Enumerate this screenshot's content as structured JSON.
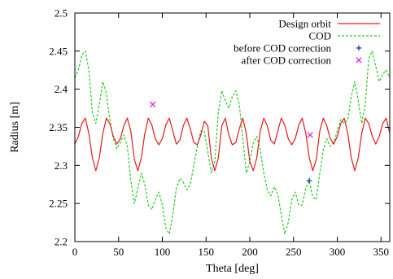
{
  "chart_data": {
    "type": "line",
    "xlabel": "Theta [deg]",
    "ylabel": "Radius [m]",
    "xlim": [
      0,
      360
    ],
    "ylim": [
      2.2,
      2.5
    ],
    "x_ticks": [
      0,
      50,
      100,
      150,
      200,
      250,
      300,
      350
    ],
    "y_ticks": [
      2.2,
      2.25,
      2.3,
      2.35,
      2.4,
      2.45,
      2.5
    ],
    "x_tick_labels": [
      "0",
      "50",
      "100",
      "150",
      "200",
      "250",
      "300",
      "350"
    ],
    "y_tick_labels": [
      "2.2",
      "2.25",
      "2.3",
      "2.35",
      "2.4",
      "2.45",
      "2.5"
    ],
    "grid": false,
    "legend_position": "top-right",
    "series": [
      {
        "name": "Design orbit",
        "kind": "line",
        "style": "solid",
        "color": "#e41a1c",
        "x": [
          0,
          4,
          8,
          12,
          16,
          20,
          24,
          28,
          32,
          36,
          40,
          44,
          48,
          52,
          56,
          60,
          64,
          68,
          72,
          76,
          80,
          84,
          88,
          92,
          96,
          100,
          104,
          108,
          112,
          116,
          120,
          124,
          128,
          132,
          136,
          140,
          144,
          148,
          152,
          156,
          160,
          164,
          168,
          172,
          176,
          180,
          184,
          188,
          192,
          196,
          200,
          204,
          208,
          212,
          216,
          220,
          224,
          228,
          232,
          236,
          240,
          244,
          248,
          252,
          256,
          260,
          264,
          268,
          272,
          276,
          280,
          284,
          288,
          292,
          296,
          300,
          304,
          308,
          312,
          316,
          320,
          324,
          328,
          332,
          336,
          340,
          344,
          348,
          352,
          356,
          360
        ],
        "y": [
          2.328,
          2.338,
          2.355,
          2.362,
          2.342,
          2.31,
          2.293,
          2.31,
          2.342,
          2.362,
          2.355,
          2.338,
          2.328,
          2.335,
          2.352,
          2.362,
          2.345,
          2.308,
          2.293,
          2.31,
          2.342,
          2.362,
          2.353,
          2.335,
          2.327,
          2.335,
          2.353,
          2.362,
          2.345,
          2.328,
          2.333,
          2.352,
          2.362,
          2.348,
          2.33,
          2.327,
          2.34,
          2.358,
          2.352,
          2.31,
          2.293,
          2.31,
          2.352,
          2.362,
          2.34,
          2.327,
          2.33,
          2.348,
          2.362,
          2.342,
          2.305,
          2.293,
          2.31,
          2.345,
          2.362,
          2.352,
          2.333,
          2.328,
          2.345,
          2.362,
          2.353,
          2.335,
          2.327,
          2.335,
          2.353,
          2.362,
          2.342,
          2.31,
          2.293,
          2.308,
          2.345,
          2.362,
          2.352,
          2.335,
          2.328,
          2.338,
          2.355,
          2.362,
          2.342,
          2.31,
          2.293,
          2.31,
          2.342,
          2.362,
          2.355,
          2.338,
          2.328,
          2.338,
          2.355,
          2.362,
          2.342
        ]
      },
      {
        "name": "COD",
        "kind": "line",
        "style": "dashed",
        "color": "#22cc22",
        "x": [
          0,
          4,
          8,
          12,
          16,
          20,
          24,
          28,
          32,
          36,
          40,
          44,
          48,
          52,
          56,
          60,
          64,
          68,
          72,
          76,
          80,
          84,
          88,
          92,
          96,
          100,
          104,
          108,
          112,
          116,
          120,
          124,
          128,
          132,
          136,
          140,
          144,
          148,
          152,
          156,
          160,
          164,
          168,
          172,
          176,
          180,
          184,
          188,
          192,
          196,
          200,
          204,
          208,
          212,
          216,
          220,
          224,
          228,
          232,
          236,
          240,
          244,
          248,
          252,
          256,
          260,
          264,
          268,
          272,
          276,
          280,
          284,
          288,
          292,
          296,
          300,
          304,
          308,
          312,
          316,
          320,
          324,
          328,
          332,
          336,
          340,
          344,
          348,
          352,
          356,
          360
        ],
        "y": [
          2.415,
          2.425,
          2.445,
          2.45,
          2.425,
          2.37,
          2.355,
          2.38,
          2.41,
          2.395,
          2.36,
          2.335,
          2.322,
          2.33,
          2.34,
          2.325,
          2.28,
          2.25,
          2.27,
          2.29,
          2.275,
          2.248,
          2.242,
          2.255,
          2.265,
          2.248,
          2.218,
          2.21,
          2.235,
          2.27,
          2.283,
          2.278,
          2.268,
          2.275,
          2.3,
          2.325,
          2.345,
          2.345,
          2.318,
          2.29,
          2.305,
          2.37,
          2.398,
          2.385,
          2.375,
          2.39,
          2.398,
          2.38,
          2.335,
          2.29,
          2.305,
          2.33,
          2.338,
          2.32,
          2.29,
          2.268,
          2.26,
          2.272,
          2.262,
          2.235,
          2.21,
          2.225,
          2.255,
          2.265,
          2.248,
          2.248,
          2.27,
          2.28,
          2.258,
          2.255,
          2.29,
          2.32,
          2.335,
          2.325,
          2.33,
          2.345,
          2.36,
          2.355,
          2.36,
          2.39,
          2.41,
          2.385,
          2.355,
          2.38,
          2.44,
          2.45,
          2.43,
          2.41,
          2.42,
          2.425,
          2.415
        ]
      },
      {
        "name": "before COD correction",
        "kind": "points",
        "marker": "plus",
        "color": "#1f3fbf",
        "x": [
          268
        ],
        "y": [
          2.28
        ]
      },
      {
        "name": "after COD correction",
        "kind": "points",
        "marker": "cross",
        "color": "#dd22dd",
        "x": [
          89,
          269
        ],
        "y": [
          2.38,
          2.34
        ]
      }
    ]
  }
}
